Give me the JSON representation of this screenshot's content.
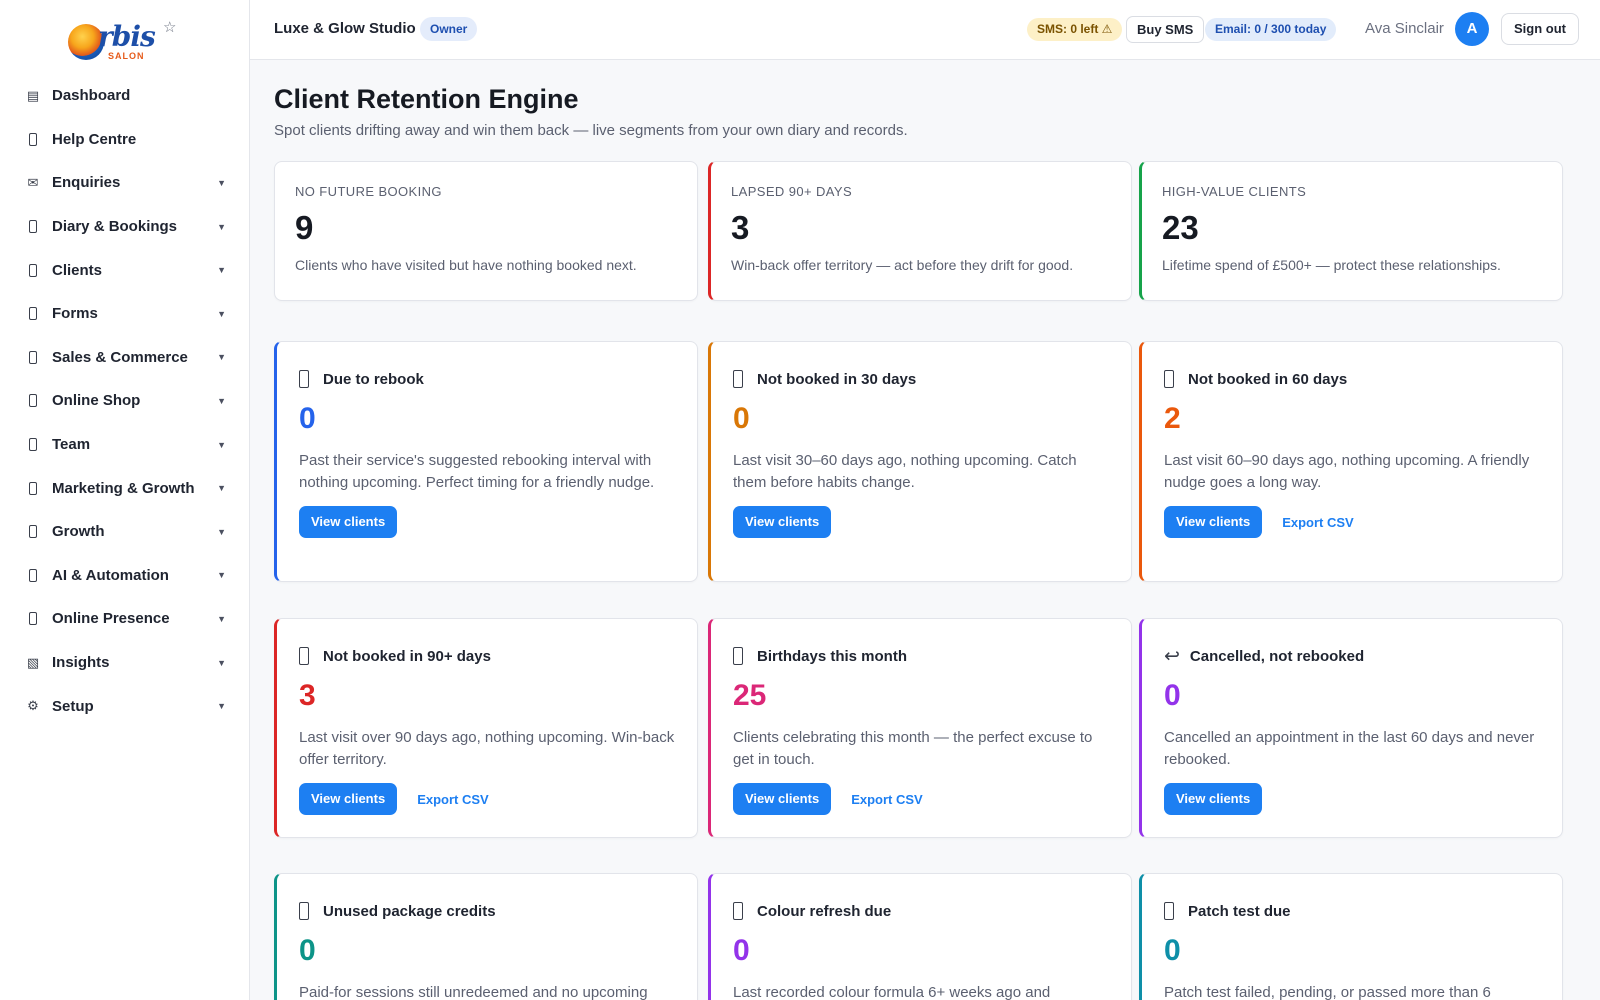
{
  "logo": {
    "word": "rbis",
    "sub": "SALON"
  },
  "sidebar": {
    "items": [
      {
        "label": "Dashboard",
        "icon": "grid-icon",
        "glyph": "▤",
        "caret": false
      },
      {
        "label": "Help Centre",
        "icon": "help-icon",
        "glyph": "",
        "caret": false
      },
      {
        "label": "Enquiries",
        "icon": "envelope-icon",
        "glyph": "✉",
        "caret": true
      },
      {
        "label": "Diary & Bookings",
        "icon": "calendar-icon",
        "glyph": "",
        "caret": true
      },
      {
        "label": "Clients",
        "icon": "clients-icon",
        "glyph": "",
        "caret": true
      },
      {
        "label": "Forms",
        "icon": "forms-icon",
        "glyph": "",
        "caret": true
      },
      {
        "label": "Sales & Commerce",
        "icon": "sales-icon",
        "glyph": "",
        "caret": true
      },
      {
        "label": "Online Shop",
        "icon": "shop-icon",
        "glyph": "",
        "caret": true
      },
      {
        "label": "Team",
        "icon": "team-icon",
        "glyph": "",
        "caret": true
      },
      {
        "label": "Marketing & Growth",
        "icon": "marketing-icon",
        "glyph": "",
        "caret": true
      },
      {
        "label": "Growth",
        "icon": "growth-icon",
        "glyph": "",
        "caret": true
      },
      {
        "label": "AI & Automation",
        "icon": "ai-icon",
        "glyph": "",
        "caret": true
      },
      {
        "label": "Online Presence",
        "icon": "globe-icon",
        "glyph": "",
        "caret": true
      },
      {
        "label": "Insights",
        "icon": "chart-icon",
        "glyph": "▧",
        "caret": true
      },
      {
        "label": "Setup",
        "icon": "gear-icon",
        "glyph": "⚙",
        "caret": true
      }
    ]
  },
  "header": {
    "studio": "Luxe & Glow Studio",
    "role": "Owner",
    "sms": "SMS: 0 left ⚠",
    "buy_sms": "Buy SMS",
    "email": "Email: 0 / 300 today",
    "user": "Ava Sinclair",
    "avatar": "A",
    "sign_out": "Sign out"
  },
  "main": {
    "title": "Client Retention Engine",
    "subtitle": "Spot clients drifting away and win them back — live segments from your own diary and records.",
    "stats": [
      {
        "label": "NO FUTURE BOOKING",
        "value": "9",
        "desc": "Clients who have visited but have nothing booked next.",
        "accent": ""
      },
      {
        "label": "LAPSED 90+ DAYS",
        "value": "3",
        "desc": "Win-back offer territory — act before they drift for good.",
        "accent": "#dc2626"
      },
      {
        "label": "HIGH-VALUE CLIENTS",
        "value": "23",
        "desc": "Lifetime spend of £500+ — protect these relationships.",
        "accent": "#16a34a"
      }
    ],
    "segments": [
      {
        "title": "Due to rebook",
        "count": "0",
        "desc": "Past their service's suggested rebooking interval with nothing upcoming. Perfect timing for a friendly nudge.",
        "color": "#2563eb",
        "view": "View clients",
        "export": "",
        "icon": "calendar-icon",
        "glyph": ""
      },
      {
        "title": "Not booked in 30 days",
        "count": "0",
        "desc": "Last visit 30–60 days ago, nothing upcoming. Catch them before habits change.",
        "color": "#d97706",
        "view": "View clients",
        "export": "",
        "icon": "clock-icon",
        "glyph": ""
      },
      {
        "title": "Not booked in 60 days",
        "count": "2",
        "desc": "Last visit 60–90 days ago, nothing upcoming. A friendly nudge goes a long way.",
        "color": "#ea580c",
        "view": "View clients",
        "export": "Export CSV",
        "icon": "hourglass-icon",
        "glyph": ""
      },
      {
        "title": "Not booked in 90+ days",
        "count": "3",
        "desc": "Last visit over 90 days ago, nothing upcoming. Win-back offer territory.",
        "color": "#dc2626",
        "view": "View clients",
        "export": "Export CSV",
        "icon": "alert-icon",
        "glyph": ""
      },
      {
        "title": "Birthdays this month",
        "count": "25",
        "desc": "Clients celebrating this month — the perfect excuse to get in touch.",
        "color": "#db2777",
        "view": "View clients",
        "export": "Export CSV",
        "icon": "cake-icon",
        "glyph": ""
      },
      {
        "title": "Cancelled, not rebooked",
        "count": "0",
        "desc": "Cancelled an appointment in the last 60 days and never rebooked.",
        "color": "#9333ea",
        "view": "View clients",
        "export": "",
        "icon": "return-arrow-icon",
        "glyph": "↩"
      },
      {
        "title": "Unused package credits",
        "count": "0",
        "desc": "Paid-for sessions still unredeemed and no upcoming",
        "color": "#0d9488",
        "view": "",
        "export": "",
        "icon": "package-icon",
        "glyph": ""
      },
      {
        "title": "Colour refresh due",
        "count": "0",
        "desc": "Last recorded colour formula 6+ weeks ago and",
        "color": "#9333ea",
        "view": "",
        "export": "",
        "icon": "palette-icon",
        "glyph": ""
      },
      {
        "title": "Patch test due",
        "count": "0",
        "desc": "Patch test failed, pending, or passed more than 6",
        "color": "#0e8fa8",
        "view": "",
        "export": "",
        "icon": "flask-icon",
        "glyph": ""
      }
    ]
  }
}
